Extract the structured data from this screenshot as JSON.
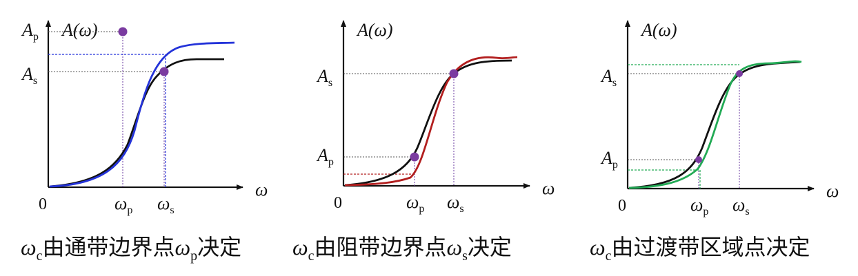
{
  "panels": [
    {
      "id": "passband",
      "y_axis_label": "A(ω)",
      "x_axis_label": "ω",
      "origin_label": "0",
      "level_labels": {
        "high": {
          "base": "A",
          "sub": "s"
        },
        "low": {
          "base": "A",
          "sub": "p"
        }
      },
      "freq_labels": {
        "low": {
          "base": "ω",
          "sub": "p"
        },
        "high": {
          "base": "ω",
          "sub": "s"
        }
      },
      "overlay_color": "#2433d9",
      "caption": [
        {
          "t": "ω",
          "k": "math"
        },
        {
          "t": "c",
          "k": "sub"
        },
        {
          "t": "由通带边界点",
          "k": "cn"
        },
        {
          "t": "ω",
          "k": "math"
        },
        {
          "t": "p",
          "k": "sub"
        },
        {
          "t": "决定",
          "k": "cn"
        }
      ]
    },
    {
      "id": "stopband",
      "y_axis_label": "A(ω)",
      "x_axis_label": "ω",
      "origin_label": "0",
      "level_labels": {
        "high": {
          "base": "A",
          "sub": "s"
        },
        "low": {
          "base": "A",
          "sub": "p"
        }
      },
      "freq_labels": {
        "low": {
          "base": "ω",
          "sub": "p"
        },
        "high": {
          "base": "ω",
          "sub": "s"
        }
      },
      "overlay_color": "#b21e1e",
      "caption": [
        {
          "t": "ω",
          "k": "math"
        },
        {
          "t": "c",
          "k": "sub"
        },
        {
          "t": "由阻带边界点",
          "k": "cn"
        },
        {
          "t": "ω",
          "k": "math"
        },
        {
          "t": "s",
          "k": "sub"
        },
        {
          "t": "决定",
          "k": "cn"
        }
      ]
    },
    {
      "id": "transition",
      "y_axis_label": "A(ω)",
      "x_axis_label": "ω",
      "origin_label": "0",
      "level_labels": {
        "high": {
          "base": "A",
          "sub": "s"
        },
        "low": {
          "base": "A",
          "sub": "p"
        }
      },
      "freq_labels": {
        "low": {
          "base": "ω",
          "sub": "p"
        },
        "high": {
          "base": "ω",
          "sub": "s"
        }
      },
      "overlay_color": "#22aa55",
      "caption": [
        {
          "t": "ω",
          "k": "math"
        },
        {
          "t": "c",
          "k": "sub"
        },
        {
          "t": "由过渡带区域点决定",
          "k": "cn"
        }
      ]
    }
  ],
  "colors": {
    "reference_curve": "#111111",
    "point_marker": "#7a3ba0",
    "guide_line": "#555555"
  }
}
